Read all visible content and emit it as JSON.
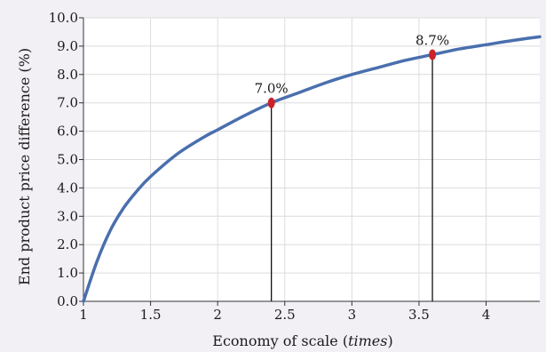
{
  "chart_data": {
    "type": "line",
    "xlabel_main": "Economy of scale (",
    "xlabel_unit": "times",
    "xlabel_close": ")",
    "ylabel": "End product price difference (%)",
    "xlim": [
      1,
      4.4
    ],
    "ylim": [
      0,
      10
    ],
    "x_ticks": [
      1,
      1.5,
      2,
      2.5,
      3,
      3.5,
      4
    ],
    "x_tick_labels": [
      "1",
      "1.5",
      "2",
      "2.5",
      "3",
      "3.5",
      "4"
    ],
    "y_ticks": [
      0,
      1,
      2,
      3,
      4,
      5,
      6,
      7,
      8,
      9,
      10
    ],
    "y_tick_labels": [
      "0.0",
      "1.0",
      "2.0",
      "3.0",
      "4.0",
      "5.0",
      "6.0",
      "7.0",
      "8.0",
      "9.0",
      "10.0"
    ],
    "grid": true,
    "series": [
      {
        "color": "#4a6fae",
        "x": [
          1.0,
          1.1,
          1.2,
          1.3,
          1.4,
          1.5,
          1.7,
          1.9,
          2.0,
          2.2,
          2.4,
          2.6,
          2.8,
          3.0,
          3.2,
          3.4,
          3.6,
          3.8,
          4.0,
          4.2,
          4.4
        ],
        "y": [
          0.0,
          1.4,
          2.5,
          3.3,
          3.9,
          4.4,
          5.2,
          5.8,
          6.05,
          6.55,
          7.0,
          7.35,
          7.7,
          8.0,
          8.25,
          8.5,
          8.7,
          8.9,
          9.05,
          9.2,
          9.33
        ]
      }
    ],
    "highlights": [
      {
        "x": 2.4,
        "y": 7.0,
        "label": "7.0%"
      },
      {
        "x": 3.6,
        "y": 8.7,
        "label": "8.7%"
      }
    ],
    "marker_color": "#cc2229",
    "gridline_color": "#dcdcdc",
    "plot_bg": "#ffffff",
    "page_bg": "#f2f0f5"
  }
}
